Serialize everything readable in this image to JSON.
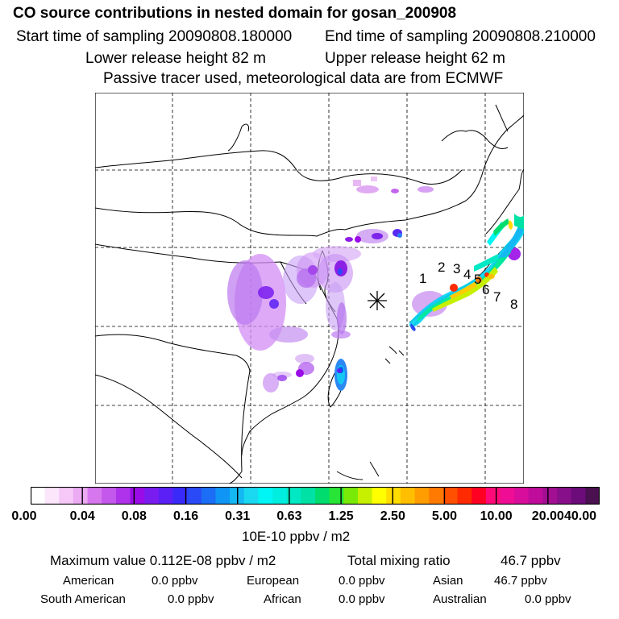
{
  "header": {
    "title": "CO  source contributions in nested domain for gosan_200908",
    "start_label": "Start time of sampling 20090808.180000",
    "end_label": "End time of sampling 20090808.210000",
    "lower_label": "Lower release height   82 m",
    "upper_label": "Upper release height   62 m",
    "tracer_note": "Passive tracer used, meteorological data are from ECMWF"
  },
  "map": {
    "receptor_marker": "asterisk-icon",
    "source_labels": [
      "1",
      "2",
      "3",
      "4",
      "5",
      "6",
      "7",
      "8"
    ]
  },
  "colorbar": {
    "ticks": [
      "0.00",
      "0.04",
      "0.08",
      "0.16",
      "0.31",
      "0.63",
      "1.25",
      "2.50",
      "5.00",
      "10.00",
      "20.00",
      "40.00"
    ],
    "unit": "10E-10 ppbv / m2",
    "colors": [
      "#ffffff",
      "#fbe6fb",
      "#f5c8f7",
      "#ebaaf2",
      "#d777ee",
      "#c458ec",
      "#ae33ea",
      "#9a0ce7",
      "#7a1cf0",
      "#5a20f5",
      "#3a2af8",
      "#2b4af7",
      "#1b6ef5",
      "#0f95f4",
      "#14b8f2",
      "#1ad8f0",
      "#00f5f5",
      "#00eee0",
      "#00e8c4",
      "#00e2a5",
      "#00dd6e",
      "#27e437",
      "#79ea08",
      "#c7f000",
      "#ffff00",
      "#ffdd00",
      "#ffbf00",
      "#ff9d00",
      "#ff7a00",
      "#ff5000",
      "#ff2a00",
      "#ff0022",
      "#ff0a78",
      "#f00d96",
      "#d80d9b",
      "#bf0c9b",
      "#a20f92",
      "#870f89",
      "#6c0c7b",
      "#4a1050"
    ]
  },
  "stats": {
    "max_label": "Maximum value  0.112E-08 ppbv / m2",
    "total_label": "Total mixing ratio",
    "total_value": "46.7 ppbv",
    "american_label": "American",
    "american_value": "0.0 ppbv",
    "european_label": "European",
    "european_value": "0.0 ppbv",
    "asian_label": "Asian",
    "asian_value": "46.7 ppbv",
    "south_american_label": "South American",
    "south_american_value": "0.0 ppbv",
    "african_label": "African",
    "african_value": "0.0 ppbv",
    "australian_label": "Australian",
    "australian_value": "0.0 ppbv"
  }
}
